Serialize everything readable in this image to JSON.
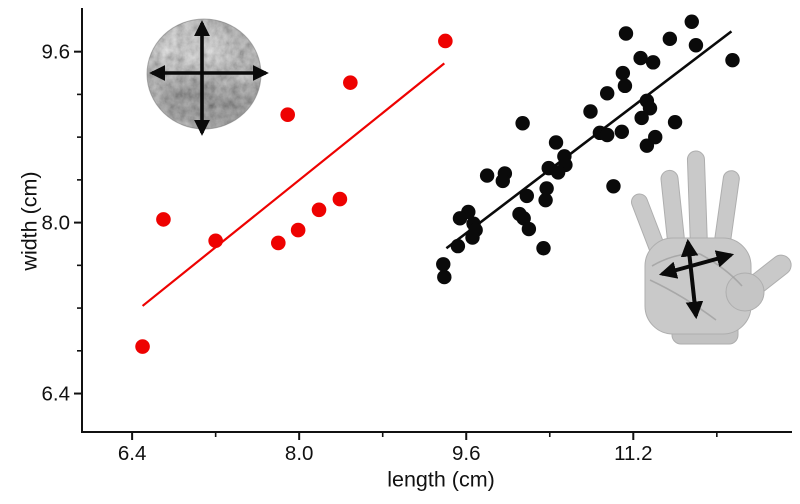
{
  "figure": {
    "background": "#ffffff",
    "axis_color": "#111111",
    "icons": {
      "top_left": "rock-photo-with-measure-arrows",
      "bottom_right": "hand-photo-with-measure-arrows"
    }
  },
  "chart_data": {
    "type": "scatter",
    "title": "",
    "xlabel": "length (cm)",
    "ylabel": "width (cm)",
    "xlim": [
      5.92,
      12.72
    ],
    "ylim": [
      6.04,
      9.99
    ],
    "grid": false,
    "legend": "none",
    "x_ticks": {
      "major": [
        6.4,
        8.0,
        9.6,
        11.2
      ],
      "labels": [
        "6.4",
        "8.0",
        "9.6",
        "11.2"
      ],
      "minor": [
        7.2,
        8.8,
        10.4,
        12.0
      ]
    },
    "y_ticks": {
      "major": [
        6.4,
        8.0,
        9.6
      ],
      "labels": [
        "6.4",
        "8.0",
        "9.6"
      ],
      "minor": [
        6.8,
        7.2,
        7.6,
        8.4,
        8.8,
        9.2
      ]
    },
    "series": [
      {
        "name": "rocks (red)",
        "color": "#ee0201",
        "marker_radius": 7.3,
        "points": [
          [
            6.5,
            6.84
          ],
          [
            6.7,
            8.03
          ],
          [
            7.2,
            7.83
          ],
          [
            7.8,
            7.81
          ],
          [
            7.89,
            9.01
          ],
          [
            7.99,
            7.93
          ],
          [
            8.19,
            8.12
          ],
          [
            8.39,
            8.22
          ],
          [
            8.49,
            9.31
          ],
          [
            9.4,
            9.7
          ]
        ],
        "trendline": {
          "x1": 6.5,
          "y1": 7.22,
          "x2": 9.39,
          "y2": 9.49,
          "width": 2.2
        }
      },
      {
        "name": "hands (black)",
        "color": "#0a0a0a",
        "marker_radius": 7.2,
        "points": [
          [
            11.76,
            9.88
          ],
          [
            11.13,
            9.77
          ],
          [
            11.55,
            9.72
          ],
          [
            11.8,
            9.66
          ],
          [
            11.27,
            9.54
          ],
          [
            11.39,
            9.5
          ],
          [
            12.15,
            9.52
          ],
          [
            11.1,
            9.4
          ],
          [
            11.12,
            9.28
          ],
          [
            10.95,
            9.21
          ],
          [
            11.33,
            9.14
          ],
          [
            11.36,
            9.07
          ],
          [
            10.79,
            9.04
          ],
          [
            11.28,
            8.98
          ],
          [
            11.6,
            8.94
          ],
          [
            10.14,
            8.93
          ],
          [
            10.88,
            8.84
          ],
          [
            10.95,
            8.82
          ],
          [
            11.09,
            8.85
          ],
          [
            11.41,
            8.8
          ],
          [
            11.33,
            8.72
          ],
          [
            10.46,
            8.75
          ],
          [
            10.54,
            8.62
          ],
          [
            10.55,
            8.54
          ],
          [
            10.39,
            8.51
          ],
          [
            10.48,
            8.47
          ],
          [
            9.8,
            8.44
          ],
          [
            9.97,
            8.46
          ],
          [
            9.95,
            8.39
          ],
          [
            11.01,
            8.34
          ],
          [
            10.37,
            8.32
          ],
          [
            10.18,
            8.25
          ],
          [
            10.36,
            8.21
          ],
          [
            10.11,
            8.08
          ],
          [
            10.15,
            8.04
          ],
          [
            10.2,
            7.94
          ],
          [
            9.62,
            8.1
          ],
          [
            9.54,
            8.04
          ],
          [
            9.67,
            7.99
          ],
          [
            9.69,
            7.93
          ],
          [
            9.66,
            7.86
          ],
          [
            9.52,
            7.78
          ],
          [
            10.34,
            7.76
          ],
          [
            9.38,
            7.61
          ],
          [
            9.39,
            7.49
          ]
        ],
        "trendline": {
          "x1": 9.41,
          "y1": 7.76,
          "x2": 12.14,
          "y2": 9.79,
          "width": 2.6
        }
      }
    ],
    "annotations": [
      {
        "icon": "rock-photo",
        "note": "crossed width/length arrows over rock, top left"
      },
      {
        "icon": "hand-photo",
        "note": "crossed width/length arrows over open palm, bottom right"
      }
    ]
  }
}
